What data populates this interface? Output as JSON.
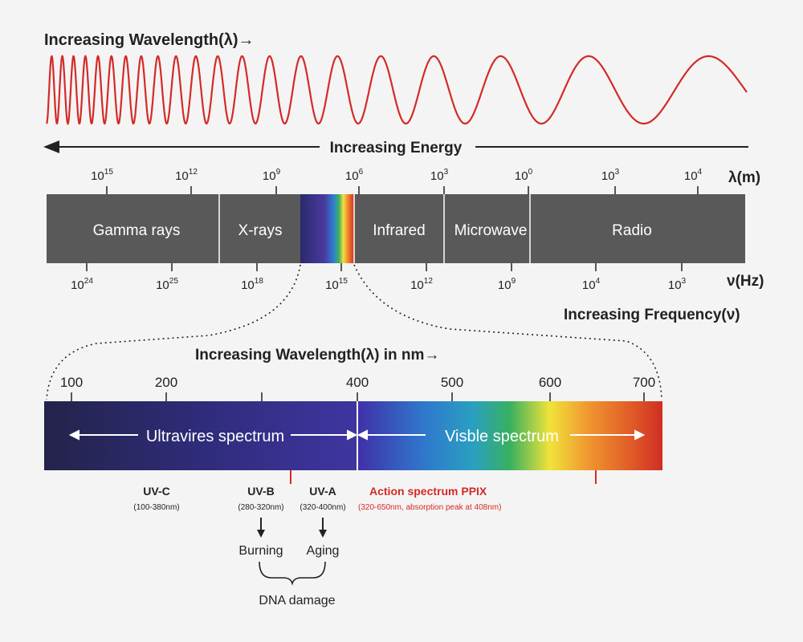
{
  "top_title": "Increasing Wavelength(λ)→",
  "energy_label": "Increasing Energy",
  "wavelength_unit": "λ(m)",
  "frequency_unit": "ν(Hz)",
  "frequency_label": "Increasing Frequency(ν)",
  "wavelength_ticks": [
    {
      "base": "10",
      "exp": "15"
    },
    {
      "base": "10",
      "exp": "12"
    },
    {
      "base": "10",
      "exp": "9"
    },
    {
      "base": "10",
      "exp": "6"
    },
    {
      "base": "10",
      "exp": "3"
    },
    {
      "base": "10",
      "exp": "0"
    },
    {
      "base": "10",
      "exp": "3"
    },
    {
      "base": "10",
      "exp": "4"
    }
  ],
  "frequency_ticks": [
    {
      "base": "10",
      "exp": "24"
    },
    {
      "base": "10",
      "exp": "25"
    },
    {
      "base": "10",
      "exp": "18"
    },
    {
      "base": "10",
      "exp": "15"
    },
    {
      "base": "10",
      "exp": "12"
    },
    {
      "base": "10",
      "exp": "9"
    },
    {
      "base": "10",
      "exp": "4"
    },
    {
      "base": "10",
      "exp": "3"
    }
  ],
  "bands": [
    "Gamma rays",
    "X-rays",
    "Infrared",
    "Microwave",
    "Radio"
  ],
  "nm_title": "Increasing Wavelength(λ) in nm→",
  "nm_ticks": [
    "100",
    "200",
    "400",
    "500",
    "600",
    "700"
  ],
  "uv_label": "Ultravires spectrum",
  "visible_label": "Visble spectrum",
  "uvc": {
    "label": "UV-C",
    "range": "(100-380nm)"
  },
  "uvb": {
    "label": "UV-B",
    "range": "(280-320nm)",
    "effect": "Burning"
  },
  "uva": {
    "label": "UV-A",
    "range": "(320-400nm)",
    "effect": "Aging"
  },
  "action": {
    "label": "Action spectrum PPIX",
    "range": "(320-650nm, absorption peak at 408nm)"
  },
  "dna_label": "DNA damage",
  "colors": {
    "wave": "#d42a27",
    "band": "#595959",
    "action": "#d42a27",
    "text": "#222222"
  }
}
